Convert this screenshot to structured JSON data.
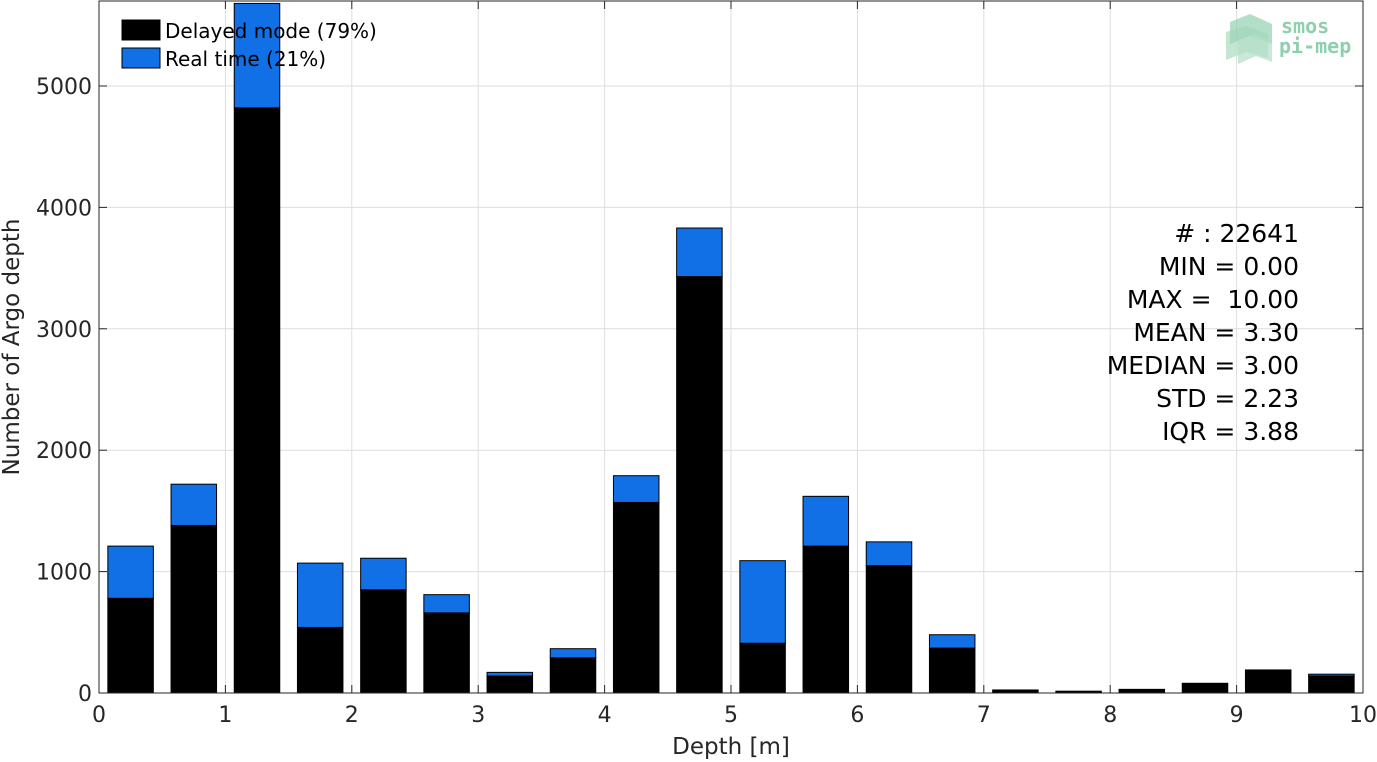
{
  "chart_data": {
    "type": "bar",
    "stacked": true,
    "xlabel": "Depth [m]",
    "ylabel": "Number of Argo depth",
    "xlim": [
      0,
      10
    ],
    "ylim": [
      0,
      5700
    ],
    "xticks": [
      0,
      1,
      2,
      3,
      4,
      5,
      6,
      7,
      8,
      9,
      10
    ],
    "yticks": [
      0,
      1000,
      2000,
      3000,
      4000,
      5000
    ],
    "grid": true,
    "legend_position": "top-left",
    "bin_centers": [
      0.25,
      0.75,
      1.25,
      1.75,
      2.25,
      2.75,
      3.25,
      3.75,
      4.25,
      4.75,
      5.25,
      5.75,
      6.25,
      6.75,
      7.25,
      7.75,
      8.25,
      8.75,
      9.25,
      9.75
    ],
    "bar_width": 0.36,
    "series": [
      {
        "name": "Delayed mode (79%)",
        "color": "#000000",
        "values": [
          780,
          1380,
          4820,
          540,
          850,
          660,
          140,
          290,
          1570,
          3430,
          410,
          1210,
          1050,
          370,
          25,
          15,
          30,
          80,
          190,
          140
        ]
      },
      {
        "name": "Real time (21%)",
        "color": "#1170e6",
        "values": [
          430,
          340,
          860,
          530,
          260,
          150,
          30,
          75,
          220,
          400,
          680,
          410,
          195,
          110,
          0,
          0,
          0,
          0,
          0,
          15
        ]
      }
    ]
  },
  "stats": [
    "# : 22641",
    "MIN = 0.00",
    "MAX =  10.00",
    "MEAN = 3.30",
    "MEDIAN = 3.00",
    "STD = 2.23",
    "IQR = 3.88"
  ],
  "logo": {
    "line1": "smos",
    "line2": "pi-mep",
    "color": "#8fcfae"
  }
}
